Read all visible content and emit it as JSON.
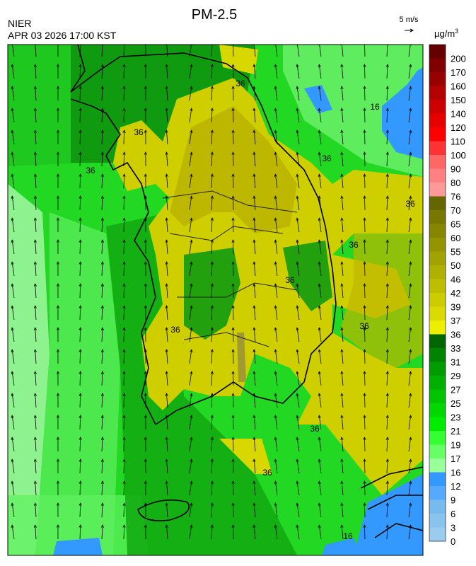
{
  "header": {
    "title": "PM-2.5",
    "agency": "NIER",
    "datetime": "APR 03 2026 17:00 KST",
    "wind_scale": "5 m/s",
    "unit": "µg/m",
    "unit_superscript": "3"
  },
  "legend": {
    "levels": [
      200,
      170,
      160,
      150,
      140,
      120,
      110,
      100,
      90,
      80,
      76,
      70,
      65,
      60,
      55,
      50,
      46,
      42,
      39,
      37,
      36,
      33,
      31,
      29,
      27,
      25,
      23,
      21,
      19,
      17,
      16,
      12,
      9,
      6,
      3,
      0
    ],
    "colors": [
      "#660000",
      "#800000",
      "#990000",
      "#b30000",
      "#cc0000",
      "#e60000",
      "#ff0000",
      "#ff3333",
      "#ff6666",
      "#ff8080",
      "#ff9999",
      "#666600",
      "#787800",
      "#868600",
      "#949400",
      "#a2a200",
      "#b0b000",
      "#bebe00",
      "#cccc00",
      "#dada00",
      "#eeee00",
      "#006600",
      "#008400",
      "#009c00",
      "#00b000",
      "#00c400",
      "#00d800",
      "#00ec00",
      "#33ff33",
      "#66ff66",
      "#99ff99",
      "#3399ff",
      "#55aaff",
      "#77bbee",
      "#88c4ee",
      "#99ccee"
    ]
  },
  "contour_labels": [
    "36",
    "36",
    "36",
    "36",
    "36",
    "36",
    "36",
    "36",
    "36",
    "36",
    "36",
    "16",
    "16"
  ]
}
